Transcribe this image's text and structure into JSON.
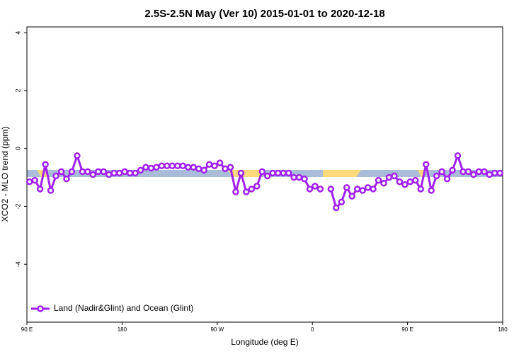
{
  "chart_data": {
    "type": "line",
    "title": "2.5S-2.5N May (Ver 10)   2015-01-01 to 2020-12-18",
    "xlabel": "Longitude (deg E)",
    "ylabel": "XCO2 - MLO trend (ppm)",
    "x": [
      92.5,
      97.5,
      102.5,
      107.5,
      112.5,
      117.5,
      122.5,
      127.5,
      132.5,
      137.5,
      142.5,
      147.5,
      152.5,
      157.5,
      162.5,
      167.5,
      172.5,
      177.5,
      182.5,
      187.5,
      192.5,
      197.5,
      202.5,
      207.5,
      212.5,
      217.5,
      222.5,
      227.5,
      232.5,
      237.5,
      242.5,
      247.5,
      252.5,
      257.5,
      262.5,
      267.5,
      272.5,
      277.5,
      282.5,
      287.5,
      292.5,
      297.5,
      302.5,
      307.5,
      312.5,
      317.5,
      322.5,
      327.5,
      332.5,
      337.5,
      342.5,
      347.5,
      352.5,
      357.5,
      362.5,
      367.5,
      372.5,
      377.5,
      382.5,
      387.5,
      392.5,
      397.5,
      402.5,
      407.5,
      412.5,
      417.5,
      422.5,
      427.5,
      432.5,
      437.5,
      442.5,
      447.5,
      452.5,
      457.5,
      462.5,
      467.5,
      472.5,
      477.5,
      482.5,
      487.5,
      492.5,
      497.5,
      502.5,
      507.5,
      512.5,
      517.5,
      522.5,
      527.5,
      532.5,
      537.5
    ],
    "series": [
      {
        "name": "Land (Nadir&Glint) and Ocean (Glint)",
        "color": "#a020f0",
        "values": [
          -1.15,
          -1.1,
          -1.4,
          -0.55,
          -1.45,
          -0.95,
          -0.8,
          -1.05,
          -0.8,
          -0.25,
          -0.8,
          -0.8,
          -0.9,
          -0.8,
          -0.8,
          -0.9,
          -0.85,
          -0.85,
          -0.8,
          -0.85,
          -0.85,
          -0.75,
          -0.65,
          -0.68,
          -0.65,
          -0.6,
          -0.6,
          -0.6,
          -0.6,
          -0.6,
          -0.65,
          -0.65,
          -0.7,
          -0.75,
          -0.55,
          -0.6,
          -0.5,
          -0.7,
          -0.65,
          -1.5,
          -0.85,
          -1.5,
          -1.4,
          -1.3,
          -0.8,
          -0.95,
          -0.85,
          -0.85,
          -0.85,
          -0.85,
          -1.0,
          -1.0,
          -1.05,
          -1.4,
          -1.3,
          -1.4,
          null,
          -1.4,
          -2.05,
          -1.85,
          -1.35,
          -1.65,
          -1.4,
          -1.45,
          -1.35,
          -1.4,
          -1.1,
          -1.2,
          -1.0,
          -0.95,
          -1.15,
          -1.25,
          -1.15,
          -1.1,
          -1.4,
          -0.55,
          -1.45,
          -0.95,
          -0.8,
          -1.05,
          -0.75,
          -0.25,
          -0.8,
          -0.8,
          -0.9,
          -0.8,
          -0.8,
          -0.9,
          -0.85,
          -0.85
        ]
      }
    ],
    "xlim": [
      90,
      540
    ],
    "xticks": [
      {
        "value": 90,
        "label": "90 E"
      },
      180,
      {
        "value": 270,
        "label": "90 W"
      },
      {
        "value": 360,
        "label": "0"
      },
      {
        "value": 450,
        "label": "90 E"
      },
      {
        "value": 540,
        "label": "180"
      }
    ],
    "ylim": [
      -6,
      4.2
    ],
    "yticks": [
      4,
      2,
      0,
      -2,
      -4
    ],
    "legend": "bottom-left"
  }
}
